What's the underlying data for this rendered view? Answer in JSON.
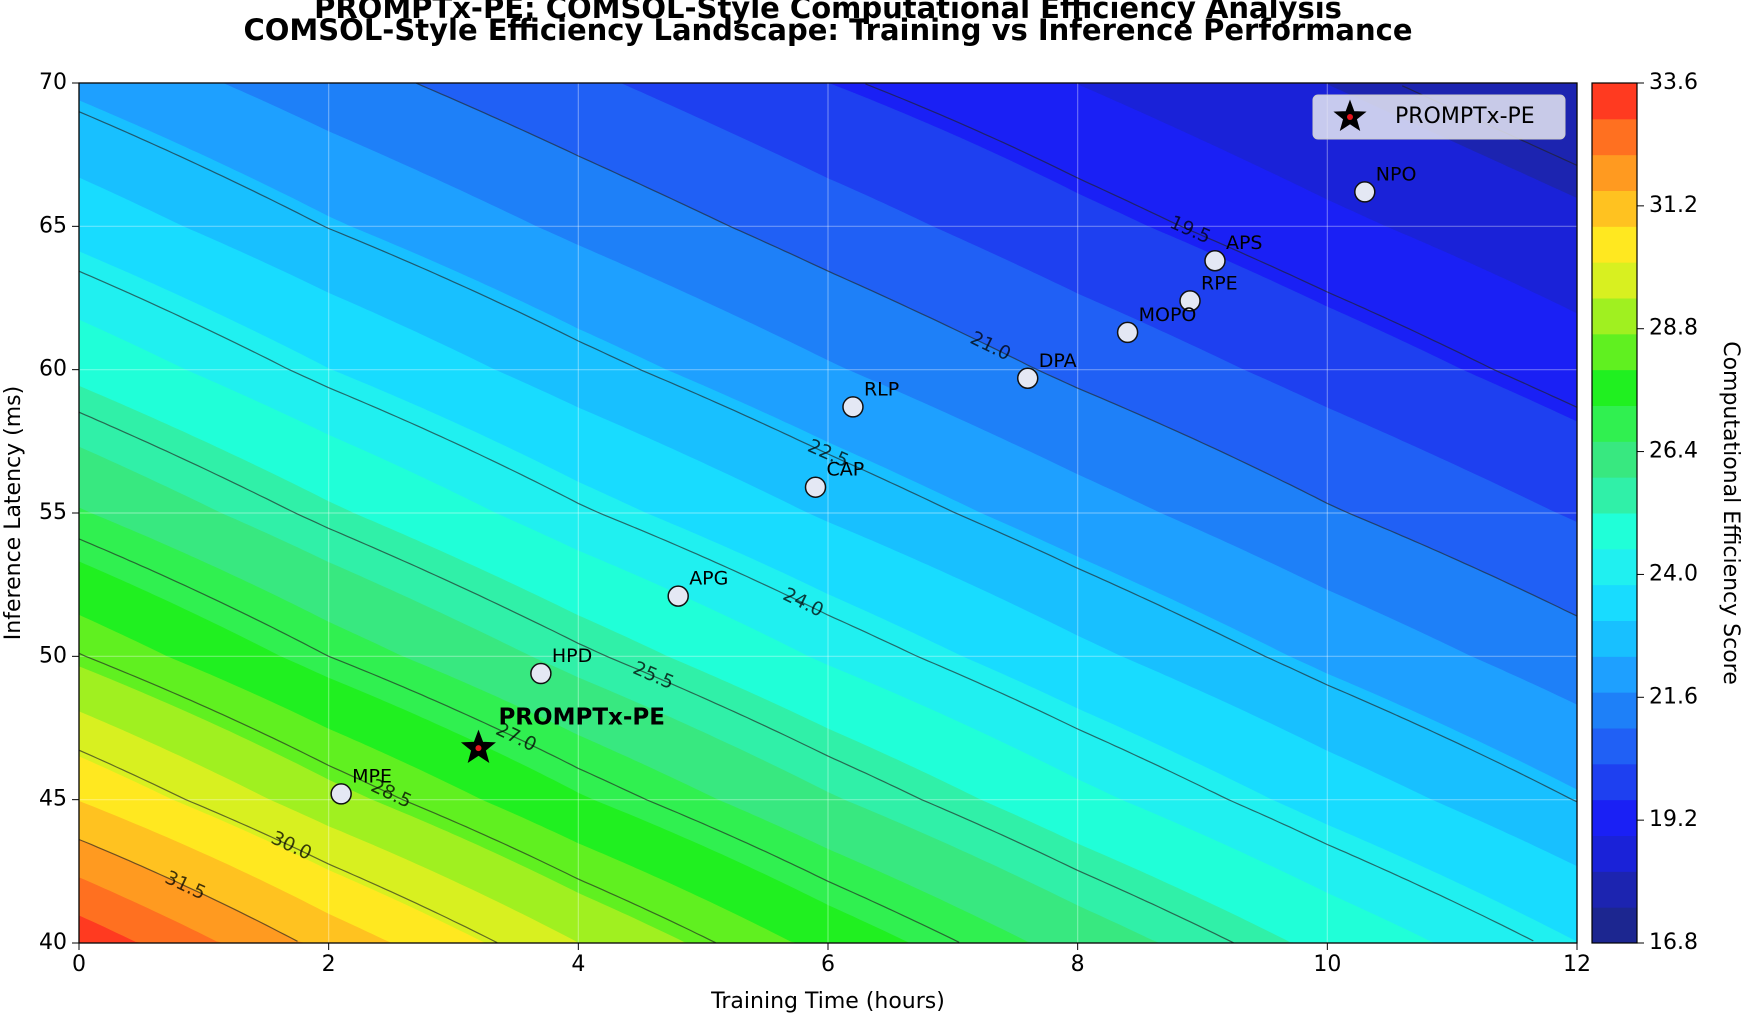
{
  "chart_data": {
    "type": "contour",
    "title": "PROMPTx-PE: COMSOL-Style Computational Efficiency Analysis",
    "subtitle": "COMSOL-Style Efficiency Landscape: Training vs Inference Performance",
    "x_label": "Training Time (hours)",
    "y_label": "Inference Latency (ms)",
    "xlim": [
      0,
      12
    ],
    "ylim": [
      40,
      70
    ],
    "xticks": [
      0,
      2,
      4,
      6,
      8,
      10,
      12
    ],
    "yticks": [
      40,
      45,
      50,
      55,
      60,
      65,
      70
    ],
    "grid": true,
    "z_x": [
      0,
      2,
      4,
      6,
      8,
      10,
      12
    ],
    "z_y": [
      40,
      45,
      50,
      55,
      60,
      65,
      70
    ],
    "z": [
      [
        33.4,
        31.26,
        29.4,
        27.77,
        26.32,
        25.01,
        23.81
      ],
      [
        30.77,
        28.97,
        27.38,
        25.98,
        24.7,
        23.54,
        22.48
      ],
      [
        28.54,
        27,
        25.64,
        24.4,
        23.28,
        22.24,
        21.3
      ],
      [
        26.66,
        25.32,
        24.09,
        23.01,
        22.01,
        21.07,
        20.23
      ],
      [
        25.01,
        23.81,
        22.74,
        21.77,
        20.85,
        20.02,
        19.24
      ],
      [
        23.54,
        22.48,
        21.54,
        20.65,
        19.81,
        19.06,
        18.37
      ],
      [
        22.24,
        21.3,
        20.44,
        19.6,
        18.89,
        18.19,
        17.5
      ]
    ],
    "contour_levels": [
      18,
      19.5,
      {
        "value": 21,
        "label": "21.0"
      },
      22.5,
      {
        "value": 24,
        "label": "24.0"
      },
      25.5,
      {
        "value": 27,
        "label": "27.0"
      },
      28.5,
      {
        "value": 30,
        "label": "30.0"
      },
      31.5
    ],
    "colorbar": {
      "label": "Computational Efficiency Score",
      "lim": [
        16.8,
        33.6
      ],
      "ticks": [
        16.8,
        19.2,
        21.6,
        {
          "value": 24,
          "label": "24.0"
        },
        26.4,
        28.8,
        31.2,
        33.6
      ],
      "colors": [
        "#1c2690",
        "#1c24b0",
        "#1a22d8",
        "#1a20f5",
        "#1e40f0",
        "#2060f5",
        "#1e80f8",
        "#1ea0ff",
        "#18c0ff",
        "#18dcff",
        "#20f0f0",
        "#20ffd8",
        "#30f0a8",
        "#38e880",
        "#30f050",
        "#20f020",
        "#60f020",
        "#a0f020",
        "#d8f020",
        "#ffe820",
        "#ffc220",
        "#ff9a20",
        "#ff7020",
        "#ff3a20"
      ]
    },
    "methods": {
      "labels": [
        "MPE",
        "HPD",
        "APG",
        "CAP",
        "RLP",
        "DPA",
        "MOPO",
        "RPE",
        "APS",
        "NPO"
      ],
      "x": [
        2.1,
        3.7,
        4.8,
        5.9,
        6.2,
        7.6,
        8.4,
        8.9,
        9.1,
        10.3
      ],
      "y": [
        45.2,
        49.4,
        52.1,
        55.9,
        58.7,
        59.7,
        61.3,
        62.4,
        63.8,
        66.2
      ],
      "color": "#e4e8f4"
    },
    "series": [
      {
        "name": "PROMPTx-PE",
        "x": [
          3.2
        ],
        "y": [
          46.8
        ],
        "color": "#000000",
        "marker": "star"
      }
    ],
    "annotation": {
      "text": "PROMPTx-PE",
      "color": "#e8141e"
    },
    "legend": "upper right"
  }
}
